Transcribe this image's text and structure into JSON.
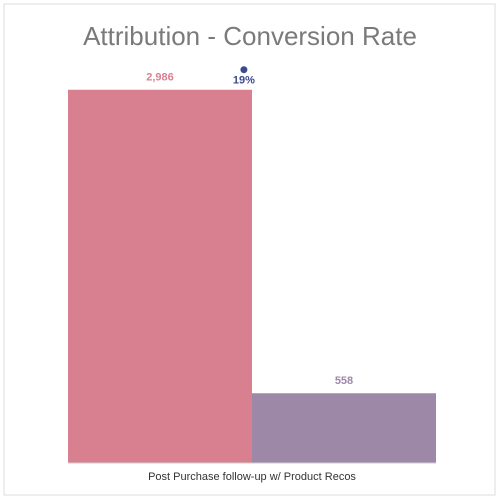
{
  "chart_data": {
    "type": "bar",
    "title": "Attribution - Conversion Rate",
    "categories": [
      "Post Purchase follow-up w/ Product Recos"
    ],
    "series": [
      {
        "color": "#d98090",
        "values": [
          2986
        ],
        "value_labels": [
          "2,986"
        ]
      },
      {
        "color": "#9e88a8",
        "values": [
          558
        ]
      },
      {
        "type": "scatter",
        "axis": "y2",
        "color": "#3b4a8c",
        "values": [
          19
        ],
        "value_labels": [
          "19%"
        ]
      }
    ],
    "ylim": [
      0,
      3000
    ],
    "y2lim": [
      0,
      20
    ]
  }
}
